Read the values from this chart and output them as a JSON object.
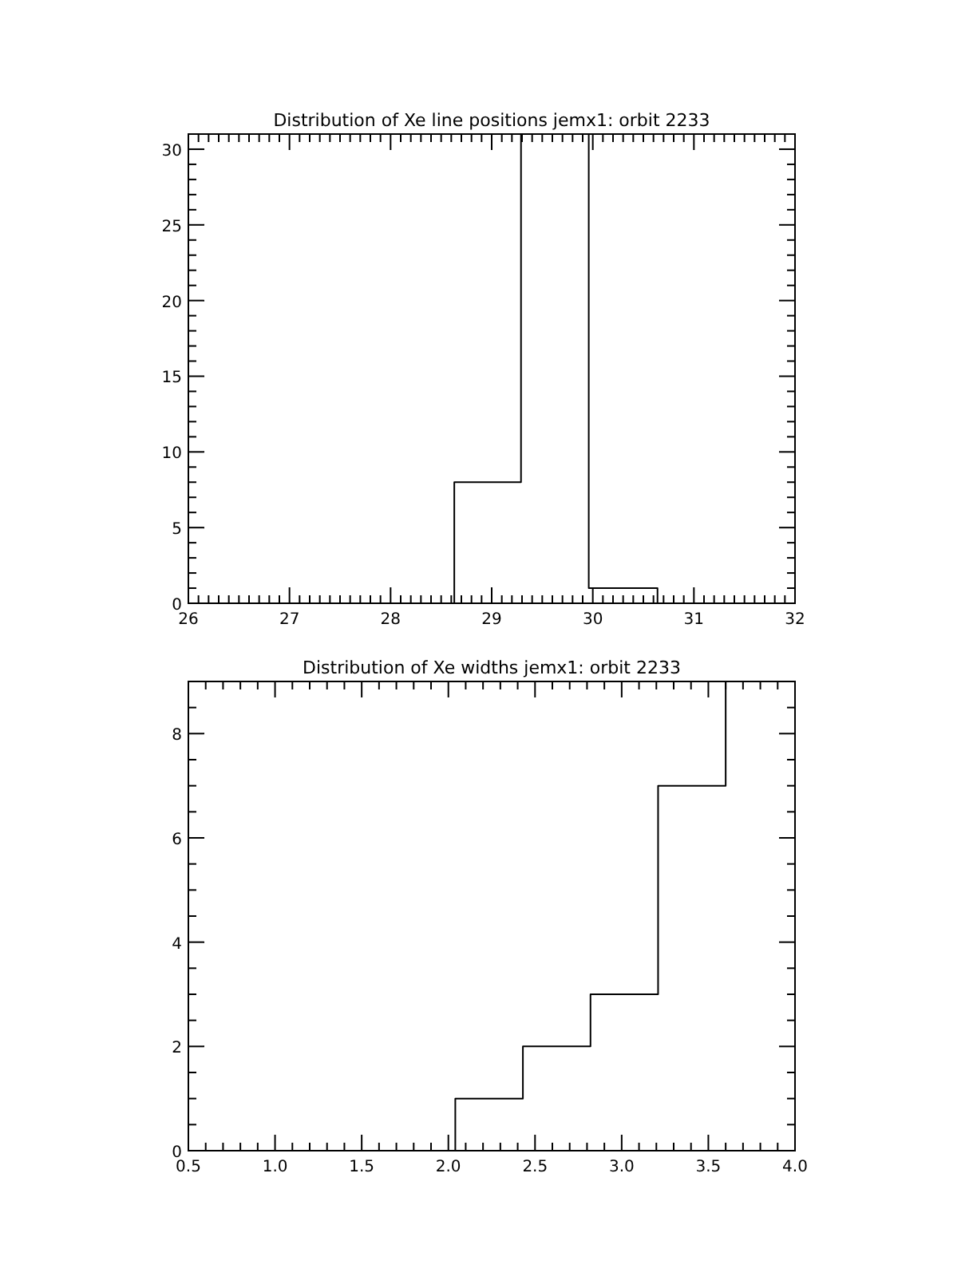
{
  "chart_data": [
    {
      "type": "histogram",
      "title": "Distribution of Xe line positions jemx1: orbit 2233",
      "bins": [
        28.63,
        29.29,
        29.96,
        30.64
      ],
      "values": [
        8,
        31,
        1
      ],
      "color": "#000000",
      "xlim": [
        26,
        32
      ],
      "ylim": [
        0,
        31
      ],
      "xticks": [
        26,
        {
          "value": 26.1,
          "label": null
        },
        {
          "value": 26.2,
          "label": null
        },
        {
          "value": 26.3,
          "label": null
        },
        {
          "value": 26.4,
          "label": null
        },
        {
          "value": 26.5,
          "label": null
        },
        {
          "value": 26.6,
          "label": null
        },
        {
          "value": 26.7,
          "label": null
        },
        {
          "value": 26.8,
          "label": null
        },
        {
          "value": 26.9,
          "label": null
        },
        27,
        {
          "value": 27.1,
          "label": null
        },
        {
          "value": 27.2,
          "label": null
        },
        {
          "value": 27.3,
          "label": null
        },
        {
          "value": 27.4,
          "label": null
        },
        {
          "value": 27.5,
          "label": null
        },
        {
          "value": 27.6,
          "label": null
        },
        {
          "value": 27.7,
          "label": null
        },
        {
          "value": 27.8,
          "label": null
        },
        {
          "value": 27.9,
          "label": null
        },
        28,
        {
          "value": 28.1,
          "label": null
        },
        {
          "value": 28.2,
          "label": null
        },
        {
          "value": 28.3,
          "label": null
        },
        {
          "value": 28.4,
          "label": null
        },
        {
          "value": 28.5,
          "label": null
        },
        {
          "value": 28.6,
          "label": null
        },
        {
          "value": 28.7,
          "label": null
        },
        {
          "value": 28.8,
          "label": null
        },
        {
          "value": 28.9,
          "label": null
        },
        29,
        {
          "value": 29.1,
          "label": null
        },
        {
          "value": 29.2,
          "label": null
        },
        {
          "value": 29.3,
          "label": null
        },
        {
          "value": 29.4,
          "label": null
        },
        {
          "value": 29.5,
          "label": null
        },
        {
          "value": 29.6,
          "label": null
        },
        {
          "value": 29.7,
          "label": null
        },
        {
          "value": 29.8,
          "label": null
        },
        {
          "value": 29.9,
          "label": null
        },
        30,
        {
          "value": 30.1,
          "label": null
        },
        {
          "value": 30.2,
          "label": null
        },
        {
          "value": 30.3,
          "label": null
        },
        {
          "value": 30.4,
          "label": null
        },
        {
          "value": 30.5,
          "label": null
        },
        {
          "value": 30.6,
          "label": null
        },
        {
          "value": 30.7,
          "label": null
        },
        {
          "value": 30.8,
          "label": null
        },
        {
          "value": 30.9,
          "label": null
        },
        31,
        {
          "value": 31.1,
          "label": null
        },
        {
          "value": 31.2,
          "label": null
        },
        {
          "value": 31.3,
          "label": null
        },
        {
          "value": 31.4,
          "label": null
        },
        {
          "value": 31.5,
          "label": null
        },
        {
          "value": 31.6,
          "label": null
        },
        {
          "value": 31.7,
          "label": null
        },
        {
          "value": 31.8,
          "label": null
        },
        {
          "value": 31.9,
          "label": null
        },
        32
      ],
      "yticks": [
        0,
        {
          "value": 1,
          "label": null
        },
        {
          "value": 2,
          "label": null
        },
        {
          "value": 3,
          "label": null
        },
        {
          "value": 4,
          "label": null
        },
        5,
        {
          "value": 6,
          "label": null
        },
        {
          "value": 7,
          "label": null
        },
        {
          "value": 8,
          "label": null
        },
        {
          "value": 9,
          "label": null
        },
        10,
        {
          "value": 11,
          "label": null
        },
        {
          "value": 12,
          "label": null
        },
        {
          "value": 13,
          "label": null
        },
        {
          "value": 14,
          "label": null
        },
        15,
        {
          "value": 16,
          "label": null
        },
        {
          "value": 17,
          "label": null
        },
        {
          "value": 18,
          "label": null
        },
        {
          "value": 19,
          "label": null
        },
        20,
        {
          "value": 21,
          "label": null
        },
        {
          "value": 22,
          "label": null
        },
        {
          "value": 23,
          "label": null
        },
        {
          "value": 24,
          "label": null
        },
        25,
        {
          "value": 26,
          "label": null
        },
        {
          "value": 27,
          "label": null
        },
        {
          "value": 28,
          "label": null
        },
        {
          "value": 29,
          "label": null
        },
        30,
        {
          "value": 31,
          "label": null
        }
      ]
    },
    {
      "type": "histogram",
      "title": "Distribution of Xe widths jemx1: orbit 2233",
      "bins": [
        2.04,
        2.43,
        2.82,
        3.21,
        3.6,
        4.0
      ],
      "values": [
        1,
        2,
        3,
        7,
        9
      ],
      "color": "#000000",
      "xlim": [
        0.5,
        4.0
      ],
      "ylim": [
        0,
        9
      ],
      "xticks": [
        {
          "value": 0.5,
          "label": "0.5"
        },
        {
          "value": 0.6,
          "label": null
        },
        {
          "value": 0.7,
          "label": null
        },
        {
          "value": 0.8,
          "label": null
        },
        {
          "value": 0.9,
          "label": null
        },
        {
          "value": 1.0,
          "label": "1.0"
        },
        {
          "value": 1.1,
          "label": null
        },
        {
          "value": 1.2,
          "label": null
        },
        {
          "value": 1.3,
          "label": null
        },
        {
          "value": 1.4,
          "label": null
        },
        {
          "value": 1.5,
          "label": "1.5"
        },
        {
          "value": 1.6,
          "label": null
        },
        {
          "value": 1.7,
          "label": null
        },
        {
          "value": 1.8,
          "label": null
        },
        {
          "value": 1.9,
          "label": null
        },
        {
          "value": 2.0,
          "label": "2.0"
        },
        {
          "value": 2.1,
          "label": null
        },
        {
          "value": 2.2,
          "label": null
        },
        {
          "value": 2.3,
          "label": null
        },
        {
          "value": 2.4,
          "label": null
        },
        {
          "value": 2.5,
          "label": "2.5"
        },
        {
          "value": 2.6,
          "label": null
        },
        {
          "value": 2.7,
          "label": null
        },
        {
          "value": 2.8,
          "label": null
        },
        {
          "value": 2.9,
          "label": null
        },
        {
          "value": 3.0,
          "label": "3.0"
        },
        {
          "value": 3.1,
          "label": null
        },
        {
          "value": 3.2,
          "label": null
        },
        {
          "value": 3.3,
          "label": null
        },
        {
          "value": 3.4,
          "label": null
        },
        {
          "value": 3.5,
          "label": "3.5"
        },
        {
          "value": 3.6,
          "label": null
        },
        {
          "value": 3.7,
          "label": null
        },
        {
          "value": 3.8,
          "label": null
        },
        {
          "value": 3.9,
          "label": null
        },
        {
          "value": 4.0,
          "label": "4.0"
        }
      ],
      "yticks": [
        0,
        {
          "value": 0.5,
          "label": null
        },
        {
          "value": 1,
          "label": null
        },
        {
          "value": 1.5,
          "label": null
        },
        2,
        {
          "value": 2.5,
          "label": null
        },
        {
          "value": 3,
          "label": null
        },
        {
          "value": 3.5,
          "label": null
        },
        4,
        {
          "value": 4.5,
          "label": null
        },
        {
          "value": 5,
          "label": null
        },
        {
          "value": 5.5,
          "label": null
        },
        6,
        {
          "value": 6.5,
          "label": null
        },
        {
          "value": 7,
          "label": null
        },
        {
          "value": 7.5,
          "label": null
        },
        8,
        {
          "value": 8.5,
          "label": null
        },
        {
          "value": 9,
          "label": null
        }
      ]
    }
  ]
}
